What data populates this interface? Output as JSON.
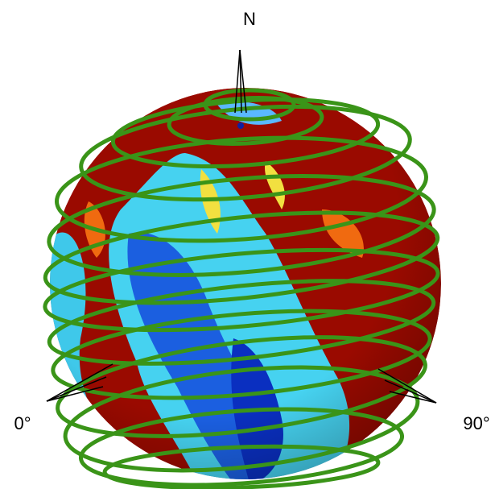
{
  "labels": {
    "north": "N",
    "lon0": "0°",
    "lon90": "90°"
  }
}
